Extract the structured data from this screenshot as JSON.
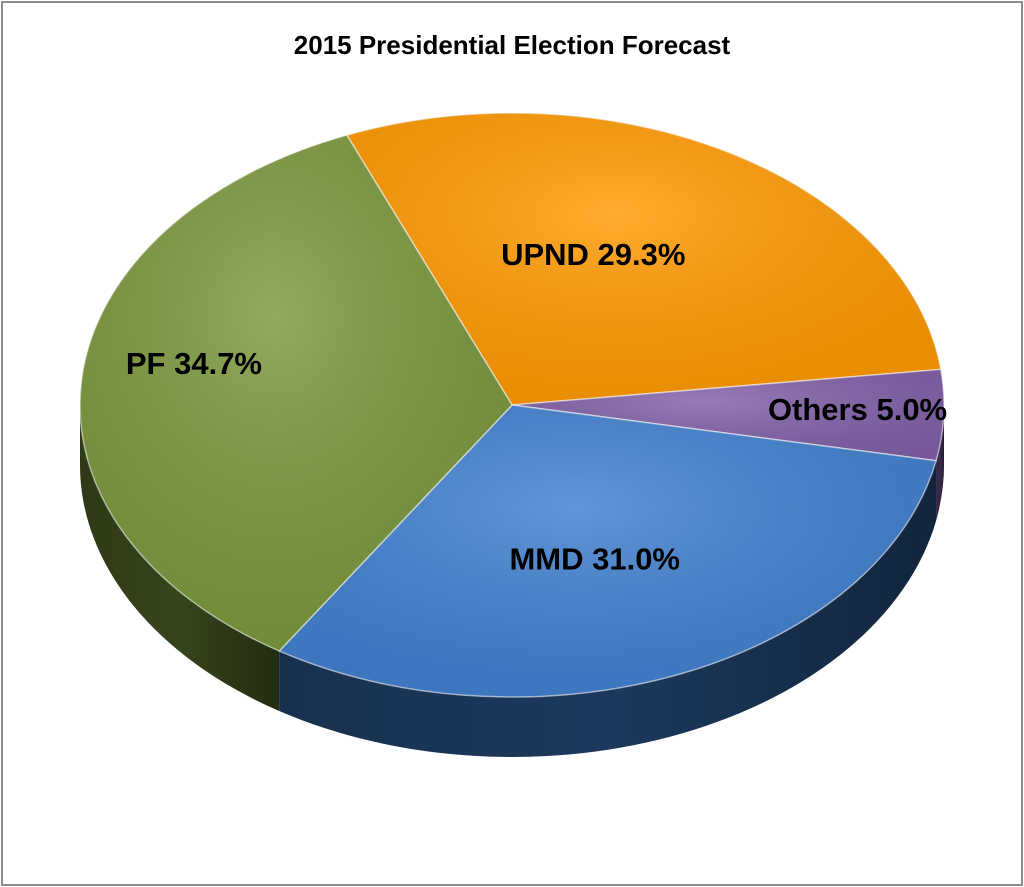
{
  "chart_data": {
    "type": "pie",
    "title": "2015 Presidential Election Forecast",
    "slices": [
      {
        "name": "UPND",
        "value": 29.3,
        "label": "UPND 29.3%",
        "color": "#ff9900"
      },
      {
        "name": "Others",
        "value": 5.0,
        "label": "Others 5.0%",
        "color": "#8060a8"
      },
      {
        "name": "MMD",
        "value": 31.0,
        "label": "MMD 31.0%",
        "color": "#3f7fcf"
      },
      {
        "name": "PF",
        "value": 34.7,
        "label": "PF 34.7%",
        "color": "#79973b"
      }
    ],
    "style": "3d"
  },
  "colors": {
    "frame": "#8c8c8c",
    "background": "#ffffff"
  }
}
